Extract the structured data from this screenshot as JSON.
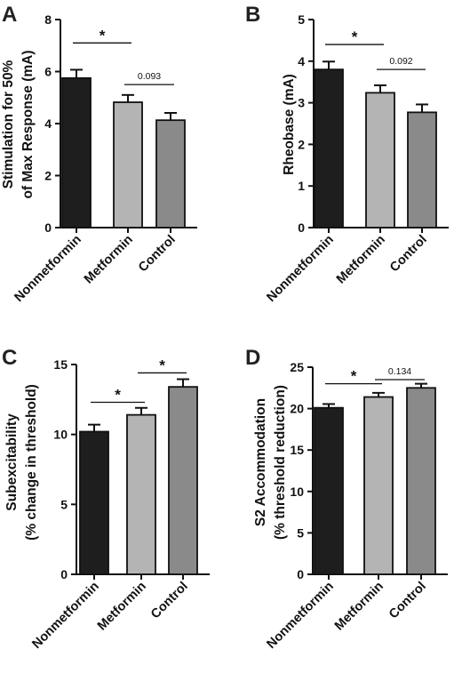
{
  "chart_data": [
    {
      "type": "bar",
      "panel": "A",
      "categories": [
        "Nonmetformin",
        "Metformin",
        "Control"
      ],
      "values": [
        5.75,
        4.82,
        4.13
      ],
      "errors": [
        0.32,
        0.28,
        0.28
      ],
      "colors": [
        "#1e1e1e",
        "#b4b4b4",
        "#8a8a8a"
      ],
      "ylabel": [
        "Stimulation for 50%",
        "of Max Response (mA)"
      ],
      "ylim": [
        0,
        8
      ],
      "yticks": [
        0,
        2,
        4,
        6,
        8
      ],
      "tick_labels": [
        "0",
        "2",
        "4",
        "6",
        "8"
      ],
      "comparisons": [
        {
          "from": 0,
          "to": 1,
          "label": "*",
          "y": 7.1,
          "kind": "star"
        },
        {
          "from": 1,
          "to": 2,
          "label": "0.093",
          "y": 5.5,
          "kind": "num"
        }
      ]
    },
    {
      "type": "bar",
      "panel": "B",
      "categories": [
        "Nonmetformin",
        "Metformin",
        "Control"
      ],
      "values": [
        3.8,
        3.24,
        2.77
      ],
      "errors": [
        0.19,
        0.18,
        0.19
      ],
      "colors": [
        "#1e1e1e",
        "#b4b4b4",
        "#8a8a8a"
      ],
      "ylabel": [
        "Rheobase (mA)"
      ],
      "ylim": [
        0,
        5
      ],
      "yticks": [
        0,
        1,
        2,
        3,
        4,
        5
      ],
      "tick_labels": [
        "0",
        "1",
        "2",
        "3",
        "4",
        "5"
      ],
      "comparisons": [
        {
          "from": 0,
          "to": 1,
          "label": "*",
          "y": 4.4,
          "kind": "star"
        },
        {
          "from": 1,
          "to": 2,
          "label": "0.092",
          "y": 3.8,
          "kind": "num"
        }
      ]
    },
    {
      "type": "bar",
      "panel": "C",
      "categories": [
        "Nonmetformin",
        "Metformin",
        "Control"
      ],
      "values": [
        10.2,
        11.4,
        13.4
      ],
      "errors": [
        0.5,
        0.5,
        0.55
      ],
      "colors": [
        "#1e1e1e",
        "#b4b4b4",
        "#8a8a8a"
      ],
      "ylabel": [
        "Subexcitability",
        "(% change in threshold)"
      ],
      "ylim": [
        0,
        15
      ],
      "yticks": [
        0,
        5,
        10,
        15
      ],
      "tick_labels": [
        "0",
        "5",
        "10",
        "15"
      ],
      "comparisons": [
        {
          "from": 0,
          "to": 1,
          "label": "*",
          "y": 12.3,
          "kind": "star"
        },
        {
          "from": 1,
          "to": 2,
          "label": "*",
          "y": 14.4,
          "kind": "star"
        }
      ]
    },
    {
      "type": "bar",
      "panel": "D",
      "categories": [
        "Nonmetformin",
        "Metformin",
        "Control"
      ],
      "values": [
        20.1,
        21.4,
        22.5
      ],
      "errors": [
        0.45,
        0.5,
        0.5
      ],
      "colors": [
        "#1e1e1e",
        "#b4b4b4",
        "#8a8a8a"
      ],
      "ylabel": [
        "S2 Accommodation",
        "(% threshold reduction)"
      ],
      "ylim": [
        0,
        25
      ],
      "yticks": [
        0,
        5,
        10,
        15,
        20,
        25
      ],
      "tick_labels": [
        "0",
        "5",
        "10",
        "15",
        "20",
        "25"
      ],
      "comparisons": [
        {
          "from": 0,
          "to": 1,
          "label": "*",
          "y": 23.0,
          "kind": "star"
        },
        {
          "from": 1,
          "to": 2,
          "label": "0.134",
          "y": 23.5,
          "kind": "num"
        }
      ]
    }
  ]
}
